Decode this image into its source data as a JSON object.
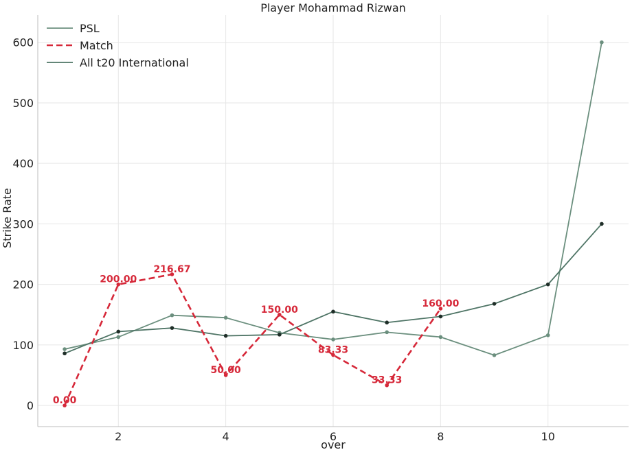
{
  "chart_data": {
    "type": "line",
    "title": "Player Mohammad Rizwan",
    "xlabel": "over",
    "ylabel": "Strike Rate",
    "xlim": [
      0.5,
      11.5
    ],
    "ylim": [
      -35,
      645
    ],
    "xticks": [
      2,
      4,
      6,
      8,
      10
    ],
    "yticks": [
      0,
      100,
      200,
      300,
      400,
      500,
      600
    ],
    "grid": true,
    "legend": "top-left",
    "series": [
      {
        "name": "PSL",
        "color": "#6b8f7e",
        "dash": "solid",
        "marker_color": "#6b8f7e",
        "x": [
          1,
          2,
          3,
          4,
          5,
          6,
          7,
          8,
          9,
          10,
          11
        ],
        "y": [
          93,
          113,
          149,
          145,
          120,
          109,
          121,
          113,
          83,
          116,
          600
        ]
      },
      {
        "name": "Match",
        "color": "#d62839",
        "dash": "dashed",
        "marker_color": "#d62839",
        "x": [
          1,
          2,
          3,
          4,
          5,
          6,
          7,
          8
        ],
        "y": [
          0.0,
          200.0,
          216.67,
          50.0,
          150.0,
          83.33,
          33.33,
          160.0
        ],
        "labels": [
          "0.00",
          "200.00",
          "216.67",
          "50.00",
          "150.00",
          "83.33",
          "33.33",
          "160.00"
        ]
      },
      {
        "name": "All t20 International",
        "color": "#4e7465",
        "dash": "solid",
        "marker_color": "#1f2e28",
        "x": [
          1,
          2,
          3,
          4,
          5,
          6,
          7,
          8,
          9,
          10,
          11
        ],
        "y": [
          86,
          122,
          128,
          115,
          117,
          155,
          137,
          147,
          168,
          200,
          300
        ]
      }
    ]
  }
}
